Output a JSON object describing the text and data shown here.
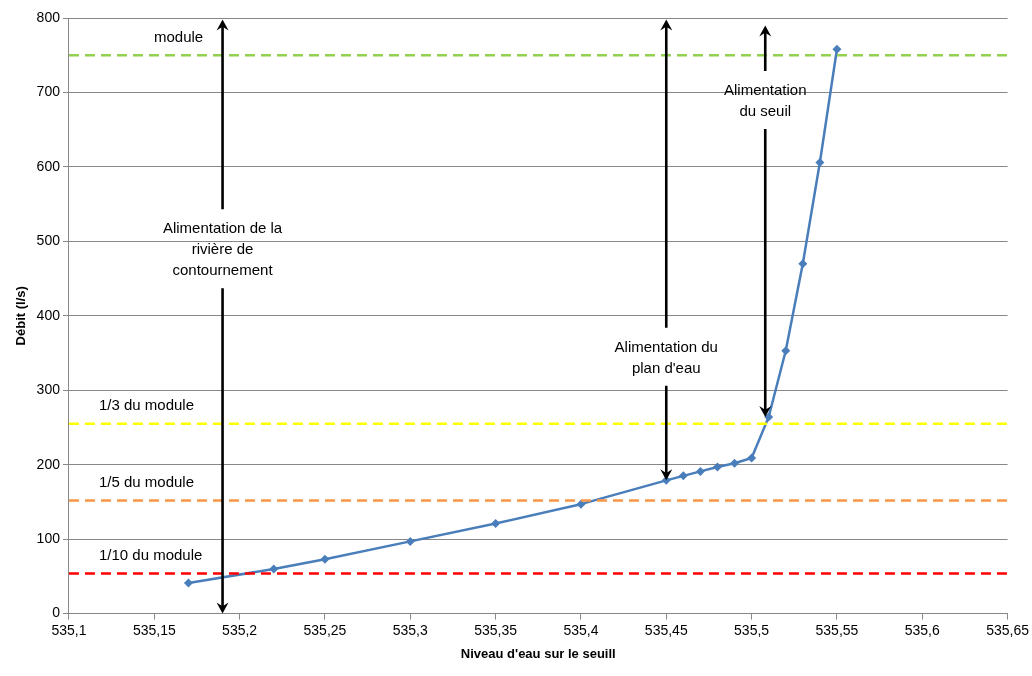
{
  "chart_data": {
    "type": "line",
    "xlabel": "Niveau d'eau sur le seuill",
    "ylabel": "Débit (l/s)",
    "x": [
      535.17,
      535.22,
      535.25,
      535.3,
      535.35,
      535.4,
      535.45,
      535.46,
      535.47,
      535.48,
      535.49,
      535.5,
      535.51,
      535.52,
      535.53,
      535.54,
      535.55
    ],
    "series": [
      {
        "color": "#4a7ebb",
        "values": [
          41,
          60,
          73,
          97,
          121,
          147,
          179,
          185,
          191,
          197,
          202,
          209,
          264,
          353,
          470,
          606,
          758
        ]
      }
    ],
    "xlim": [
      535.1,
      535.65
    ],
    "xticks": [
      {
        "value": 535.1,
        "label": "535,1"
      },
      {
        "value": 535.15,
        "label": "535,15"
      },
      {
        "value": 535.2,
        "label": "535,2"
      },
      {
        "value": 535.25,
        "label": "535,25"
      },
      {
        "value": 535.3,
        "label": "535,3"
      },
      {
        "value": 535.35,
        "label": "535,35"
      },
      {
        "value": 535.4,
        "label": "535,4"
      },
      {
        "value": 535.45,
        "label": "535,45"
      },
      {
        "value": 535.5,
        "label": "535,5"
      },
      {
        "value": 535.55,
        "label": "535,55"
      },
      {
        "value": 535.6,
        "label": "535,6"
      },
      {
        "value": 535.65,
        "label": "535,65"
      }
    ],
    "ylim": [
      0,
      800
    ],
    "yticks": [
      0,
      100,
      200,
      300,
      400,
      500,
      600,
      700,
      800
    ],
    "grid": "y",
    "legend": false,
    "marker": "diamond",
    "ref_lines": [
      {
        "axis": "y",
        "value": 750,
        "label": "module",
        "color": "#92d050",
        "line_style": "dashed"
      },
      {
        "axis": "y",
        "value": 255,
        "label": "1/3 du module",
        "color": "#ffff00",
        "line_style": "dashed"
      },
      {
        "axis": "y",
        "value": 152,
        "label": "1/5 du module",
        "color": "#f79646",
        "line_style": "dashed"
      },
      {
        "axis": "y",
        "value": 54,
        "label": "1/10 du module",
        "color": "#ff0000",
        "line_style": "dashed"
      }
    ],
    "annotations": [
      "Alimentation de la rivière de contournement",
      "Alimentation du plan d'eau",
      "Alimentation du seuil"
    ]
  }
}
